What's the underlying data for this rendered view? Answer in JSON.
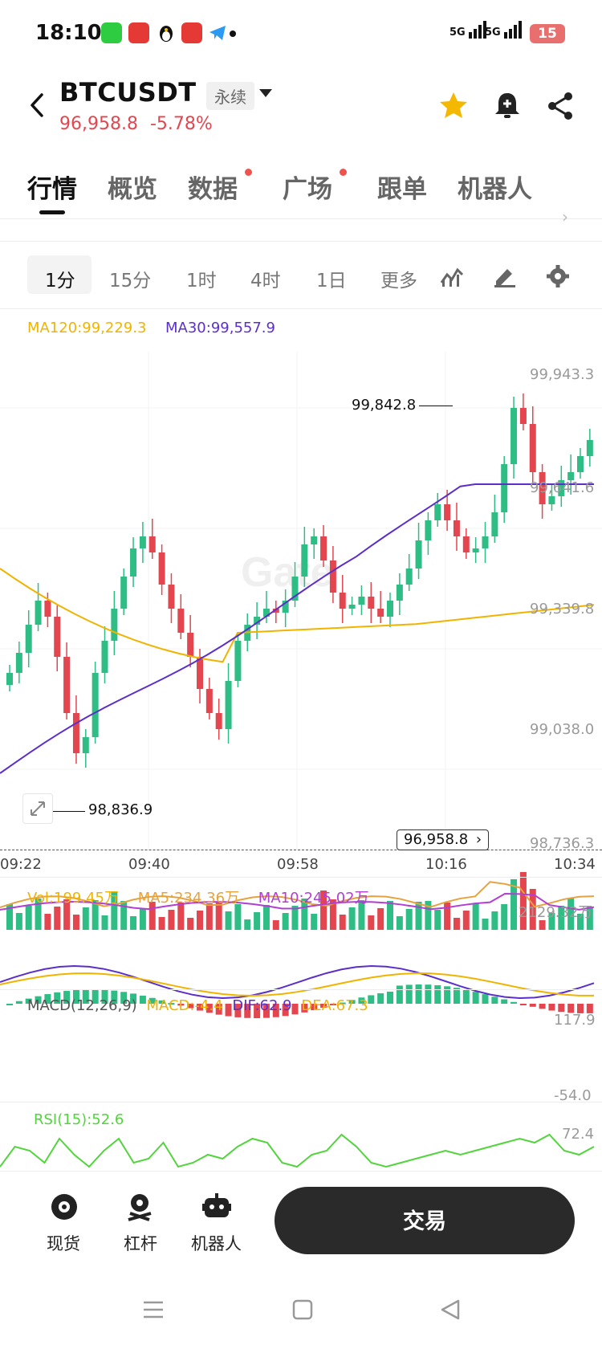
{
  "status_bar": {
    "time": "18:10",
    "signal_1": "5G",
    "signal_2": "5G",
    "battery": "15"
  },
  "header": {
    "pair": "BTCUSDT",
    "contract_type": "永续",
    "price": "96,958.8",
    "change": "-5.78%",
    "price_color": "#e4464f"
  },
  "tabs": [
    {
      "label": "行情",
      "active": true,
      "dot": false
    },
    {
      "label": "概览",
      "active": false,
      "dot": false
    },
    {
      "label": "数据",
      "active": false,
      "dot": true
    },
    {
      "label": "广场",
      "active": false,
      "dot": true
    },
    {
      "label": "跟单",
      "active": false,
      "dot": false
    },
    {
      "label": "机器人",
      "active": false,
      "dot": false
    }
  ],
  "intervals": {
    "items": [
      "1分",
      "15分",
      "1时",
      "4时",
      "1日",
      "更多"
    ],
    "active": "1分",
    "tool_icons": [
      "indicator-icon",
      "draw-pencil-icon",
      "settings-gear-icon"
    ]
  },
  "main_chart": {
    "ma120_label": "MA120:99,229.3",
    "ma30_label": "MA30:99,557.9",
    "ma120_color": "#f0b400",
    "ma30_color": "#5b2fc9",
    "y_labels": [
      "99,943.3",
      "99,641.6",
      "99,339.8",
      "99,038.0",
      "98,736.3"
    ],
    "high_label": "99,842.8",
    "low_label": "98,836.9",
    "current_price_tag": "96,958.8",
    "x_labels": [
      "09:22",
      "09:40",
      "09:58",
      "10:16",
      "10:34"
    ],
    "watermark": "Gate",
    "up_color": "#2ebd85",
    "down_color": "#e4464f"
  },
  "volume_panel": {
    "vol_label": "Vol:199.45万",
    "ma5_label": "MA5:234.36万",
    "ma10_label": "MA10:245.02万",
    "max_label": "2129.32万"
  },
  "macd_panel": {
    "title": "MACD(12,26,9)",
    "macd": "MACD:-4.4",
    "dif": "DIF:62.9",
    "dea": "DEA:67.3",
    "max_label": "117.9",
    "min_label": "-54.0"
  },
  "rsi_panel": {
    "label": "RSI(15):52.6",
    "max_label": "72.4"
  },
  "bottom_bar": {
    "spot_label": "现货",
    "leverage_label": "杠杆",
    "bot_label": "机器人",
    "trade_label": "交易"
  }
}
